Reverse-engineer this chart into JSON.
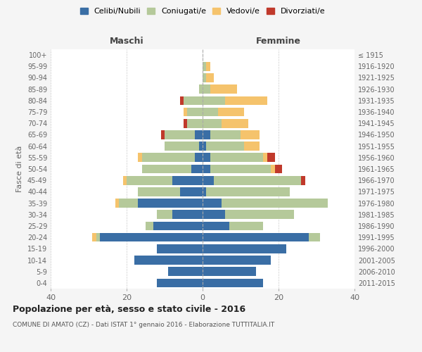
{
  "age_groups": [
    "0-4",
    "5-9",
    "10-14",
    "15-19",
    "20-24",
    "25-29",
    "30-34",
    "35-39",
    "40-44",
    "45-49",
    "50-54",
    "55-59",
    "60-64",
    "65-69",
    "70-74",
    "75-79",
    "80-84",
    "85-89",
    "90-94",
    "95-99",
    "100+"
  ],
  "birth_years": [
    "2011-2015",
    "2006-2010",
    "2001-2005",
    "1996-2000",
    "1991-1995",
    "1986-1990",
    "1981-1985",
    "1976-1980",
    "1971-1975",
    "1966-1970",
    "1961-1965",
    "1956-1960",
    "1951-1955",
    "1946-1950",
    "1941-1945",
    "1936-1940",
    "1931-1935",
    "1926-1930",
    "1921-1925",
    "1916-1920",
    "≤ 1915"
  ],
  "maschi": {
    "celibi": [
      12,
      9,
      18,
      12,
      27,
      13,
      8,
      17,
      6,
      8,
      3,
      2,
      1,
      2,
      0,
      0,
      0,
      0,
      0,
      0,
      0
    ],
    "coniugati": [
      0,
      0,
      0,
      0,
      1,
      2,
      4,
      5,
      11,
      12,
      13,
      14,
      9,
      8,
      4,
      4,
      5,
      1,
      0,
      0,
      0
    ],
    "vedovi": [
      0,
      0,
      0,
      0,
      1,
      0,
      0,
      1,
      0,
      1,
      0,
      1,
      0,
      0,
      0,
      1,
      0,
      0,
      0,
      0,
      0
    ],
    "divorziati": [
      0,
      0,
      0,
      0,
      0,
      0,
      0,
      0,
      0,
      0,
      0,
      0,
      0,
      1,
      1,
      0,
      1,
      0,
      0,
      0,
      0
    ]
  },
  "femmine": {
    "nubili": [
      16,
      14,
      18,
      22,
      28,
      7,
      6,
      5,
      1,
      3,
      2,
      2,
      1,
      2,
      0,
      0,
      0,
      0,
      0,
      0,
      0
    ],
    "coniugate": [
      0,
      0,
      0,
      0,
      3,
      9,
      18,
      28,
      22,
      23,
      16,
      14,
      10,
      8,
      5,
      4,
      6,
      2,
      1,
      1,
      0
    ],
    "vedove": [
      0,
      0,
      0,
      0,
      0,
      0,
      0,
      0,
      0,
      0,
      1,
      1,
      4,
      5,
      7,
      7,
      11,
      7,
      2,
      1,
      0
    ],
    "divorziate": [
      0,
      0,
      0,
      0,
      0,
      0,
      0,
      0,
      0,
      1,
      2,
      2,
      0,
      0,
      0,
      0,
      0,
      0,
      0,
      0,
      0
    ]
  },
  "colors": {
    "celibi": "#3a6ea5",
    "coniugati": "#b5c99a",
    "vedovi": "#f5c36c",
    "divorziati": "#c0392b"
  },
  "title": "Popolazione per età, sesso e stato civile - 2016",
  "subtitle": "COMUNE DI AMATO (CZ) - Dati ISTAT 1° gennaio 2016 - Elaborazione TUTTITALIA.IT",
  "ylabel_left": "Fasce di età",
  "xlim": 40,
  "background_color": "#f5f5f5",
  "plot_bg": "#ffffff",
  "legend_labels": [
    "Celibi/Nubili",
    "Coniugati/e",
    "Vedovi/e",
    "Divorziati/e"
  ]
}
